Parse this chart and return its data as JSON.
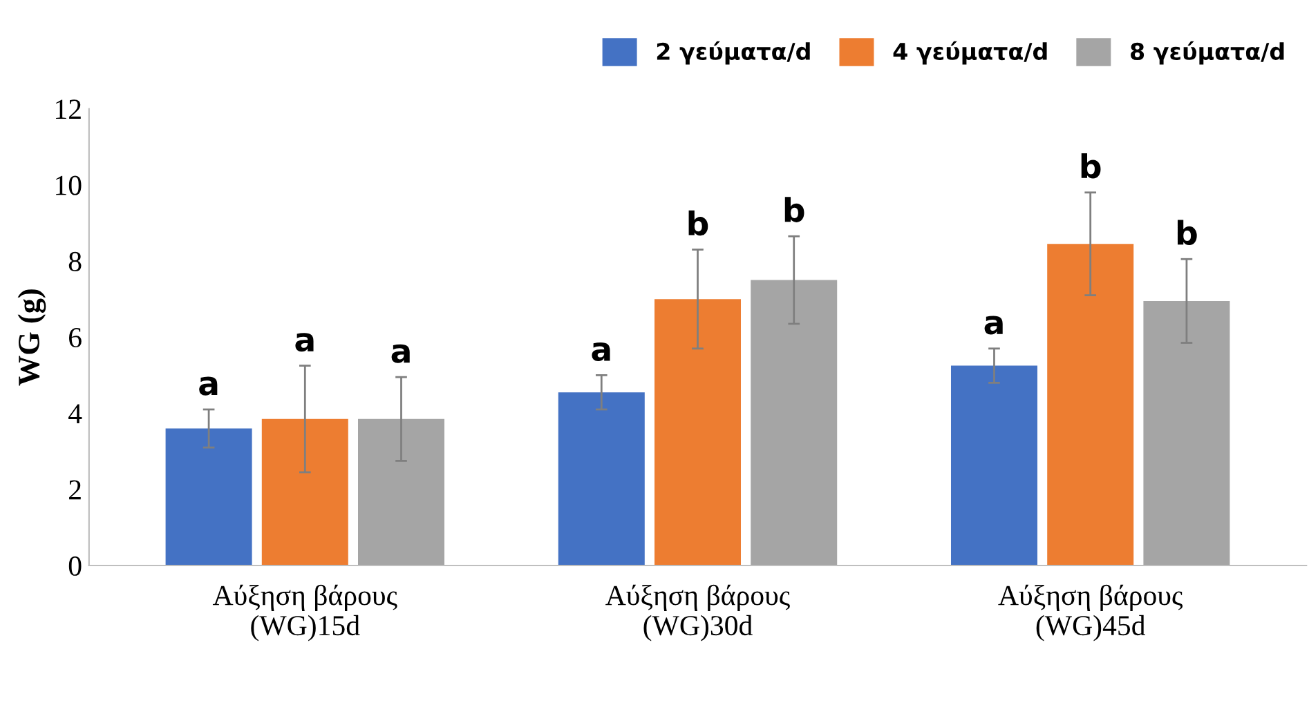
{
  "chart_data": {
    "type": "bar",
    "ylabel": "WG (g)",
    "categories": [
      "Αύξηση βάρους\n(WG)15d",
      "Αύξηση βάρους\n(WG)30d",
      "Αύξηση βάρους\n(WG)45d"
    ],
    "series": [
      {
        "name": "2 γεύματα/d",
        "color": "#4472c4",
        "values": [
          3.6,
          4.55,
          5.25
        ],
        "errors": [
          0.5,
          0.45,
          0.45
        ]
      },
      {
        "name": "4 γεύματα/d",
        "color": "#ed7d31",
        "values": [
          3.85,
          7.0,
          8.45
        ],
        "errors": [
          1.4,
          1.3,
          1.35
        ]
      },
      {
        "name": "8 γεύματα/d",
        "color": "#a5a5a5",
        "values": [
          3.85,
          7.5,
          6.95
        ],
        "errors": [
          1.1,
          1.15,
          1.1
        ]
      }
    ],
    "ylim": [
      0,
      12
    ],
    "yticks": [
      0,
      2,
      4,
      6,
      8,
      10,
      12
    ],
    "grid": false,
    "legend": "top right",
    "annotations": [
      "a",
      "a",
      "a",
      "a",
      "b",
      "b",
      "a",
      "b",
      "b"
    ]
  }
}
